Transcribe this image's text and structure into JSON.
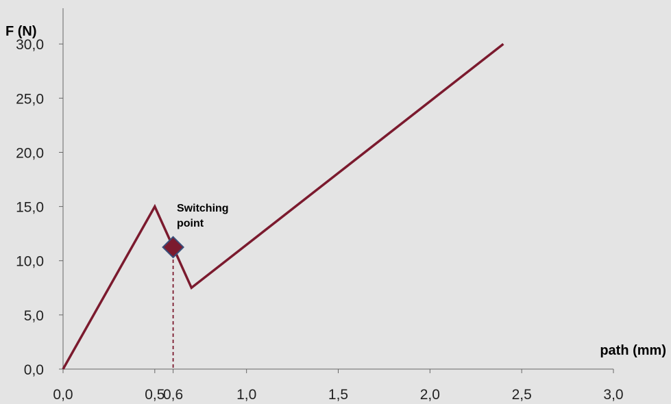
{
  "chart_data": {
    "type": "line",
    "xlabel": "path (mm)",
    "ylabel": "F (N)",
    "xlim": [
      0,
      3.0
    ],
    "ylim": [
      0,
      33.3
    ],
    "x_ticks": [
      0,
      0.5,
      0.6,
      1.0,
      1.5,
      2.0,
      2.5,
      3.0
    ],
    "x_tick_labels": [
      "0,0",
      "0,5",
      "0,6",
      "1,0",
      "1,5",
      "2,0",
      "2,5",
      "3,0"
    ],
    "y_ticks": [
      0,
      5,
      10,
      15,
      20,
      25,
      30
    ],
    "y_tick_labels": [
      "0,0",
      "5,0",
      "10,0",
      "15,0",
      "20,0",
      "25,0",
      "30,0"
    ],
    "series": [
      {
        "color": "#7b1a2e",
        "x": [
          0,
          0.5,
          0.7,
          2.4
        ],
        "y": [
          0,
          15,
          7.5,
          30
        ]
      }
    ],
    "marker": {
      "shape": "diamond",
      "x": 0.6,
      "y": 11.25,
      "fill": "#7b1a2e",
      "stroke": "#3a4f7a"
    },
    "annotation": {
      "lines": [
        "Switching",
        "point"
      ]
    },
    "grid": false,
    "legend": "none"
  }
}
